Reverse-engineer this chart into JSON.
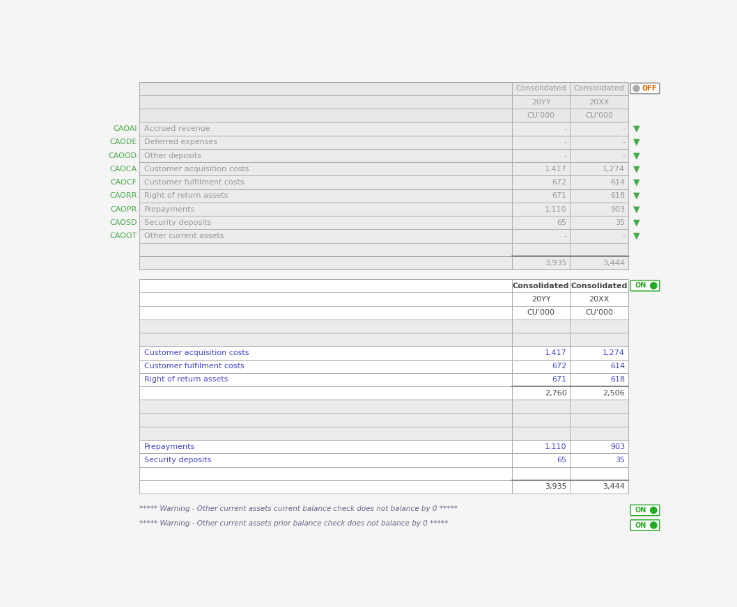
{
  "bg_color": "#f5f5f5",
  "white": "#ffffff",
  "table_border": "#aaaaaa",
  "dark_border": "#888888",
  "header_bg": "#e8e8e8",
  "row_bg": "#ebebeb",
  "text_gray": "#999999",
  "text_dark": "#444444",
  "text_blue": "#4444cc",
  "green_label": "#44aa44",
  "green_toggle": "#22aa22",
  "orange_toggle": "#dd6600",
  "toggle_border": "#888888",
  "top_table": {
    "header_rows": [
      [
        "",
        "Consolidated",
        "Consolidated"
      ],
      [
        "",
        "20YY",
        "20XX"
      ],
      [
        "",
        "CU'000",
        "CU'000"
      ]
    ],
    "data_rows": [
      {
        "label_code": "CAOAI",
        "label": "Accrued revenue",
        "v1": "-",
        "v2": "-"
      },
      {
        "label_code": "CAODE",
        "label": "Deferred expenses",
        "v1": "-",
        "v2": "-"
      },
      {
        "label_code": "CAOOD",
        "label": "Other deposits",
        "v1": "-",
        "v2": "-"
      },
      {
        "label_code": "CAOCA",
        "label": "Customer acquisition costs",
        "v1": "1,417",
        "v2": "1,274"
      },
      {
        "label_code": "CAOCF",
        "label": "Customer fulfilment costs",
        "v1": "672",
        "v2": "614"
      },
      {
        "label_code": "CAORR",
        "label": "Right of return assets",
        "v1": "671",
        "v2": "618"
      },
      {
        "label_code": "CAOPR",
        "label": "Prepayments",
        "v1": "1,110",
        "v2": "903"
      },
      {
        "label_code": "CAOSD",
        "label": "Security deposits",
        "v1": "65",
        "v2": "35"
      },
      {
        "label_code": "CAOOT",
        "label": "Other current assets",
        "v1": "-",
        "v2": "-"
      }
    ],
    "total_row": {
      "v1": "3,935",
      "v2": "3,444"
    },
    "toggle": "OFF"
  },
  "bottom_table": {
    "header_rows": [
      [
        "",
        "Consolidated",
        "Consolidated"
      ],
      [
        "",
        "20YY",
        "20XX"
      ],
      [
        "",
        "CU'000",
        "CU'000"
      ]
    ],
    "group1_rows": [
      {
        "label": "Customer acquisition costs",
        "v1": "1,417",
        "v2": "1,274"
      },
      {
        "label": "Customer fulfilment costs",
        "v1": "672",
        "v2": "614"
      },
      {
        "label": "Right of return assets",
        "v1": "671",
        "v2": "618"
      }
    ],
    "subtotal_row": {
      "v1": "2,760",
      "v2": "2,506"
    },
    "group2_rows": [
      {
        "label": "Prepayments",
        "v1": "1,110",
        "v2": "903"
      },
      {
        "label": "Security deposits",
        "v1": "65",
        "v2": "35"
      }
    ],
    "total_row": {
      "v1": "3,935",
      "v2": "3,444"
    },
    "toggle": "ON"
  },
  "warnings": [
    "***** Warning - Other current assets current balance check does not balance by 0 *****",
    "***** Warning - Other current assets prior balance check does not balance by 0 *****"
  ]
}
